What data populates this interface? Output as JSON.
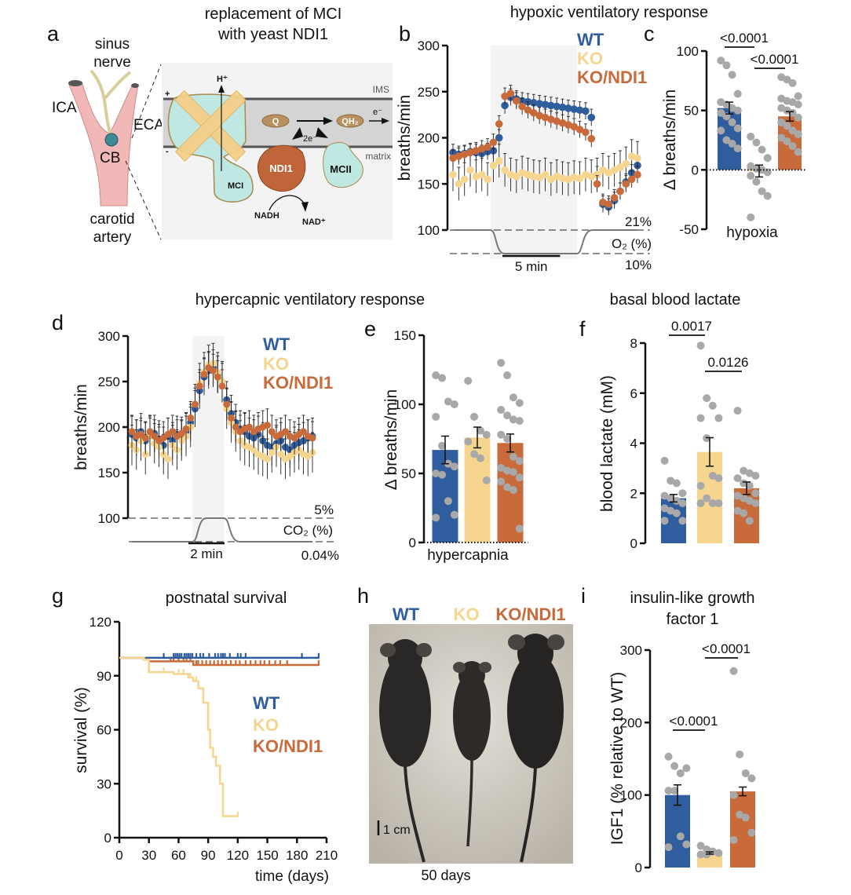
{
  "colors": {
    "WT": "#2f5d9e",
    "KO": "#f6d58e",
    "KO/NDI1": "#c96a3a",
    "dots": "#a8a8a8",
    "shade": "#f3f3f3"
  },
  "panel_labels": {
    "a": "a",
    "b": "b",
    "c": "c",
    "d": "d",
    "e": "e",
    "f": "f",
    "g": "g",
    "h": "h",
    "i": "i"
  },
  "panel_a": {
    "title_line1": "replacement of MCI",
    "title_line2": "with yeast NDI1",
    "labels": {
      "sinus": "sinus",
      "nerve": "nerve",
      "ica": "ICA",
      "eca": "ECA",
      "cb": "CB",
      "carotid": "carotid",
      "artery": "artery",
      "h_plus": "H⁺",
      "ims": "IMS",
      "plus": "+",
      "minus": "-",
      "q": "Q",
      "qh2": "QH₂",
      "e_minus": "e⁻",
      "two_e": "2e⁻",
      "matrix": "matrix",
      "ndi1": "NDI1",
      "mci": "MCI",
      "mcii": "MCII",
      "nadh": "NADH",
      "nad_plus": "NAD⁺"
    }
  },
  "panel_h": {
    "legend": [
      "WT",
      "KO",
      "KO/NDI1"
    ],
    "scale_label": "1 cm",
    "caption": "50 days"
  },
  "panel_i_title": {
    "line1": "insulin-like growth",
    "line2": "factor 1"
  },
  "chart_data": [
    {
      "id": "b",
      "type": "scatter",
      "title": "hypoxic ventilatory response",
      "xlabel": "",
      "ylabel": "breaths/min",
      "ylim": [
        100,
        300
      ],
      "yticks": [
        "100",
        "150",
        "200",
        "250",
        "300"
      ],
      "xlim": [
        0,
        16
      ],
      "x": [
        0,
        0.5,
        1,
        1.5,
        2,
        2.5,
        3,
        3.5,
        4,
        4.5,
        5,
        5.5,
        6,
        6.5,
        7,
        7.5,
        8,
        8.5,
        9,
        9.5,
        10,
        10.5,
        11,
        11.5,
        12,
        12.5,
        13,
        13.5,
        14,
        14.5,
        15,
        15.5,
        16
      ],
      "series": [
        {
          "name": "WT",
          "sem": 9,
          "values": [
            184,
            182,
            183,
            185,
            184,
            183,
            185,
            186,
            200,
            235,
            244,
            242,
            240,
            239,
            238,
            237,
            236,
            235,
            234,
            233,
            232,
            231,
            230,
            229,
            222,
            160,
            128,
            125,
            132,
            142,
            152,
            162,
            170
          ]
        },
        {
          "name": "KO",
          "sem": 18,
          "values": [
            160,
            150,
            155,
            165,
            158,
            160,
            155,
            170,
            175,
            165,
            160,
            158,
            162,
            160,
            158,
            157,
            160,
            155,
            158,
            156,
            155,
            157,
            156,
            160,
            158,
            160,
            165,
            162,
            165,
            168,
            172,
            180,
            178
          ]
        },
        {
          "name": "KO/NDI1",
          "sem": 9,
          "values": [
            178,
            180,
            182,
            184,
            186,
            188,
            190,
            195,
            215,
            245,
            248,
            240,
            234,
            230,
            227,
            224,
            222,
            220,
            218,
            216,
            214,
            212,
            209,
            206,
            199,
            150,
            130,
            128,
            135,
            142,
            150,
            155,
            160
          ]
        }
      ],
      "stimulus": {
        "gas_label": "O₂ (%)",
        "baseline_label": "21%",
        "stimulus_label": "10%",
        "start": 3.25,
        "end": 10.75
      },
      "scale_bar": {
        "label": "5 min",
        "minutes": 5
      },
      "legend_position": "top-right"
    },
    {
      "id": "c",
      "type": "bar",
      "title": "",
      "xlabel": "hypoxia",
      "ylabel": "Δ breaths/min",
      "ylim": [
        -50,
        100
      ],
      "yticks": [
        "-50",
        "0",
        "50",
        "100"
      ],
      "ytick_values": [
        -50,
        0,
        50,
        100
      ],
      "groups": [
        {
          "name": "WT",
          "mean": 52,
          "sem": 5,
          "points": [
            92,
            88,
            80,
            64,
            57,
            55,
            52,
            50,
            48,
            45,
            40,
            35,
            33,
            25,
            22,
            18
          ]
        },
        {
          "name": "KO",
          "mean": -1,
          "sem": 5,
          "points": [
            28,
            23,
            17,
            10,
            3,
            1,
            0,
            -2,
            -5,
            -10,
            -18,
            -22,
            -40
          ]
        },
        {
          "name": "KO/NDI1",
          "mean": 45,
          "sem": 4,
          "points": [
            78,
            76,
            73,
            62,
            60,
            58,
            57,
            55,
            52,
            50,
            48,
            44,
            40,
            37,
            33,
            30,
            27,
            24,
            20,
            15
          ]
        }
      ],
      "comparisons": [
        {
          "a": 0,
          "b": 1,
          "label": "<0.0001"
        },
        {
          "a": 1,
          "b": 2,
          "label": "<0.0001"
        }
      ]
    },
    {
      "id": "d",
      "type": "scatter",
      "title": "hypercapnic ventilatory response",
      "xlabel": "",
      "ylabel": "breaths/min",
      "ylim": [
        100,
        300
      ],
      "yticks": [
        "100",
        "150",
        "200",
        "250",
        "300"
      ],
      "xlim": [
        0,
        10
      ],
      "x": [
        0,
        0.25,
        0.5,
        0.75,
        1,
        1.25,
        1.5,
        1.75,
        2,
        2.25,
        2.5,
        2.75,
        3,
        3.25,
        3.5,
        3.75,
        4,
        4.25,
        4.5,
        4.75,
        5,
        5.25,
        5.5,
        5.75,
        6,
        6.25,
        6.5,
        6.75,
        7,
        7.25,
        7.5,
        7.75,
        8,
        8.25,
        8.5,
        8.75,
        9,
        9.25,
        9.5,
        9.75,
        10
      ],
      "series": [
        {
          "name": "WT",
          "sem": 20,
          "values": [
            192,
            188,
            195,
            185,
            190,
            193,
            187,
            180,
            190,
            185,
            192,
            188,
            195,
            205,
            220,
            240,
            255,
            262,
            265,
            258,
            250,
            230,
            215,
            205,
            198,
            195,
            190,
            188,
            192,
            185,
            180,
            178,
            182,
            185,
            178,
            175,
            180,
            183,
            185,
            188,
            190
          ]
        },
        {
          "name": "KO",
          "sem": 22,
          "values": [
            180,
            175,
            185,
            170,
            190,
            182,
            178,
            170,
            165,
            180,
            175,
            185,
            190,
            200,
            225,
            248,
            260,
            268,
            270,
            260,
            250,
            220,
            205,
            195,
            185,
            180,
            178,
            175,
            170,
            168,
            165,
            172,
            178,
            170,
            165,
            168,
            172,
            175,
            170,
            168,
            172
          ]
        },
        {
          "name": "KO/NDI1",
          "sem": 18,
          "values": [
            195,
            190,
            192,
            188,
            195,
            190,
            185,
            188,
            192,
            195,
            190,
            193,
            198,
            210,
            225,
            245,
            258,
            265,
            262,
            255,
            245,
            225,
            210,
            200,
            195,
            198,
            200,
            195,
            198,
            200,
            202,
            195,
            190,
            192,
            195,
            190,
            188,
            192,
            195,
            190,
            188
          ]
        }
      ],
      "stimulus": {
        "gas_label": "CO₂ (%)",
        "baseline_label": "0.04%",
        "stimulus_label": "5%",
        "start": 3.35,
        "end": 5.1
      },
      "scale_bar": {
        "label": "2 min",
        "minutes": 2
      },
      "legend_position": "top-right"
    },
    {
      "id": "e",
      "type": "bar",
      "title": "",
      "xlabel": "hypercapnia",
      "ylabel": "Δ breaths/min",
      "ylim": [
        0,
        150
      ],
      "yticks": [
        "0",
        "50",
        "100",
        "150"
      ],
      "ytick_values": [
        0,
        50,
        100,
        150
      ],
      "groups": [
        {
          "name": "WT",
          "mean": 67,
          "sem": 10,
          "points": [
            121,
            119,
            102,
            100,
            91,
            70,
            57,
            55,
            50,
            49,
            30,
            20,
            18
          ]
        },
        {
          "name": "KO",
          "mean": 76,
          "sem": 7.5,
          "points": [
            117,
            91,
            81,
            78,
            73,
            64,
            61,
            45
          ]
        },
        {
          "name": "KO/NDI1",
          "mean": 72,
          "sem": 6.5,
          "points": [
            130,
            121,
            105,
            101,
            96,
            92,
            89,
            88,
            78,
            75,
            62,
            59,
            54,
            52,
            51,
            47,
            44,
            40,
            38,
            10
          ]
        }
      ],
      "comparisons": []
    },
    {
      "id": "f",
      "type": "bar",
      "title": "basal blood lactate",
      "xlabel": "",
      "ylabel": "blood lactate (mM)",
      "ylim": [
        0,
        8
      ],
      "yticks": [
        "0",
        "2",
        "4",
        "6",
        "8"
      ],
      "ytick_values": [
        0,
        2,
        4,
        6,
        8
      ],
      "groups": [
        {
          "name": "WT",
          "mean": 1.8,
          "sem": 0.15,
          "points": [
            3.3,
            2.5,
            2.4,
            2.0,
            1.9,
            1.8,
            1.7,
            1.6,
            1.4,
            1.3,
            1.2,
            0.9,
            0.9
          ]
        },
        {
          "name": "KO",
          "mean": 3.65,
          "sem": 0.57,
          "points": [
            7.9,
            5.8,
            5.5,
            5.0,
            5.0,
            4.2,
            2.7,
            2.6,
            2.3,
            1.8,
            1.6,
            1.6,
            1.6
          ]
        },
        {
          "name": "KO/NDI1",
          "mean": 2.2,
          "sem": 0.25,
          "points": [
            5.3,
            2.9,
            2.8,
            2.7,
            2.6,
            2.4,
            2.3,
            2.0,
            1.9,
            1.8,
            1.7,
            1.6,
            1.3,
            1.2,
            0.9
          ]
        }
      ],
      "comparisons": [
        {
          "a": 0,
          "b": 1,
          "label": "0.0017"
        },
        {
          "a": 1,
          "b": 2,
          "label": "0.0126"
        }
      ]
    },
    {
      "id": "g",
      "type": "line",
      "title": "postnatal survival",
      "xlabel": "time (days)",
      "ylabel": "survival (%)",
      "xlim": [
        0,
        210
      ],
      "ylim": [
        0,
        120
      ],
      "xticks": [
        "0",
        "30",
        "60",
        "90",
        "120",
        "150",
        "180",
        "210"
      ],
      "xtick_values": [
        0,
        30,
        60,
        90,
        120,
        150,
        180,
        210
      ],
      "yticks": [
        "0",
        "30",
        "60",
        "90",
        "120"
      ],
      "ytick_values": [
        0,
        30,
        60,
        90,
        120
      ],
      "series": [
        {
          "name": "WT",
          "steps": [
            [
              0,
              100
            ],
            [
              202,
              100
            ]
          ],
          "censored": [
            45,
            55,
            57,
            59,
            61,
            63,
            66,
            68,
            70,
            72,
            74,
            78,
            82,
            85,
            91,
            97,
            100,
            103,
            105,
            107,
            112,
            120,
            123,
            128,
            185,
            202
          ]
        },
        {
          "name": "KO",
          "steps": [
            [
              0,
              100
            ],
            [
              25,
              99
            ],
            [
              30,
              92
            ],
            [
              50,
              92
            ],
            [
              55,
              91
            ],
            [
              70,
              89
            ],
            [
              75,
              87
            ],
            [
              80,
              83
            ],
            [
              85,
              75
            ],
            [
              90,
              60
            ],
            [
              92,
              50
            ],
            [
              95,
              45
            ],
            [
              98,
              40
            ],
            [
              102,
              30
            ],
            [
              105,
              12
            ],
            [
              120,
              12
            ]
          ],
          "censored": [
            45,
            60,
            65,
            72,
            78,
            120
          ]
        },
        {
          "name": "KO/NDI1",
          "steps": [
            [
              0,
              100
            ],
            [
              25,
              99
            ],
            [
              30,
              98
            ],
            [
              75,
              96
            ],
            [
              202,
              96
            ]
          ],
          "censored": [
            52,
            55,
            60,
            65,
            68,
            72,
            78,
            80,
            84,
            88,
            92,
            96,
            100,
            104,
            108,
            113,
            118,
            122,
            128,
            133,
            138,
            143,
            147,
            152,
            158,
            163,
            170,
            202
          ]
        }
      ],
      "legend_position": "center-right"
    },
    {
      "id": "i",
      "type": "bar",
      "title": "insulin-like growth factor 1",
      "xlabel": "",
      "ylabel": "IGF1  (% relative to WT)",
      "ylim": [
        0,
        300
      ],
      "yticks": [
        "0",
        "100",
        "200",
        "300"
      ],
      "ytick_values": [
        0,
        100,
        200,
        300
      ],
      "groups": [
        {
          "name": "WT",
          "mean": 100,
          "sem": 14,
          "points": [
            153,
            140,
            130,
            137,
            106,
            106,
            43,
            32,
            28
          ]
        },
        {
          "name": "KO",
          "mean": 20,
          "sem": 1.5,
          "points": [
            30,
            25,
            22,
            20,
            18,
            18,
            22
          ]
        },
        {
          "name": "KO/NDI1",
          "mean": 105,
          "sem": 6,
          "points": [
            271,
            156,
            130,
            123,
            100,
            73,
            69,
            48,
            38
          ]
        }
      ],
      "comparisons": [
        {
          "a": 0,
          "b": 1,
          "label": "<0.0001"
        },
        {
          "a": 1,
          "b": 2,
          "label": "<0.0001"
        }
      ]
    }
  ]
}
